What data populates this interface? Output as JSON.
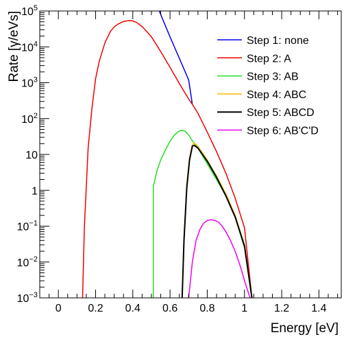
{
  "chart_data": {
    "type": "line",
    "title": "",
    "xlabel": "Energy [eV]",
    "ylabel": "Rate [γ/eVs]",
    "xlim": [
      -0.1,
      1.52
    ],
    "ylim": [
      0.001,
      100000
    ],
    "yscale": "log",
    "grid": false,
    "legend_position": "top-right",
    "x_ticks": [
      {
        "value": 0,
        "label": "0"
      },
      {
        "value": 0.2,
        "label": "0.2"
      },
      {
        "value": 0.4,
        "label": "0.4"
      },
      {
        "value": 0.6,
        "label": "0.6"
      },
      {
        "value": 0.8,
        "label": "0.8"
      },
      {
        "value": 1.0,
        "label": "1"
      },
      {
        "value": 1.2,
        "label": "1.2"
      },
      {
        "value": 1.4,
        "label": "1.4"
      }
    ],
    "y_ticks": [
      {
        "value": 0.001,
        "label": "10",
        "exp": "−3"
      },
      {
        "value": 0.01,
        "label": "10",
        "exp": "−2"
      },
      {
        "value": 0.1,
        "label": "10",
        "exp": "−1"
      },
      {
        "value": 1,
        "label": "1",
        "exp": ""
      },
      {
        "value": 10,
        "label": "10",
        "exp": ""
      },
      {
        "value": 100,
        "label": "10",
        "exp": "2"
      },
      {
        "value": 1000,
        "label": "10",
        "exp": "3"
      },
      {
        "value": 10000,
        "label": "10",
        "exp": "4"
      },
      {
        "value": 100000,
        "label": "10",
        "exp": "5"
      }
    ],
    "series": [
      {
        "name": "Step 1: none",
        "color": "#0000ee",
        "x": [
          0.542,
          0.6,
          0.65,
          0.7,
          0.72
        ],
        "y": [
          100000,
          19000,
          4800,
          1200,
          250
        ]
      },
      {
        "name": "Step 2: A",
        "color": "#ee0000",
        "x": [
          0.13,
          0.14,
          0.16,
          0.18,
          0.2,
          0.22,
          0.25,
          0.28,
          0.3,
          0.32,
          0.35,
          0.38,
          0.4,
          0.42,
          0.45,
          0.48,
          0.5,
          0.55,
          0.6,
          0.65,
          0.7,
          0.72,
          0.75,
          0.8,
          0.85,
          0.9,
          0.95,
          1.0,
          1.04
        ],
        "y": [
          0.001,
          0.1,
          15,
          180,
          1300,
          4000,
          13000,
          27000,
          36000,
          43000,
          51000,
          54000,
          53000,
          48000,
          37000,
          25000,
          19000,
          7400,
          2700,
          950,
          350,
          250,
          140,
          42,
          12,
          3.0,
          0.6,
          0.09,
          0.001
        ]
      },
      {
        "name": "Step 3: AB",
        "color": "#22dd22",
        "x": [
          0.51,
          0.51,
          0.515,
          0.53,
          0.55,
          0.58,
          0.6,
          0.62,
          0.64,
          0.66,
          0.68,
          0.7,
          0.72,
          0.75,
          0.8,
          0.85,
          0.9,
          0.95,
          1.0,
          1.04
        ],
        "y": [
          0.001,
          1.3,
          1.6,
          3.5,
          7,
          15,
          23,
          33,
          42,
          47,
          45,
          35,
          24,
          15,
          5.5,
          2.0,
          0.7,
          0.18,
          0.025,
          0.001
        ]
      },
      {
        "name": "Step 4: ABC",
        "color": "#ffbb00",
        "x": [
          0.665,
          0.675,
          0.69,
          0.705,
          0.72,
          0.73,
          0.75,
          0.8,
          0.85,
          0.9,
          0.95,
          1.0,
          1.04
        ],
        "y": [
          0.001,
          0.05,
          1.5,
          8,
          19,
          21,
          17,
          7,
          2.5,
          0.8,
          0.2,
          0.03,
          0.001
        ]
      },
      {
        "name": "Step 5: ABCD",
        "color": "#000000",
        "x": [
          0.665,
          0.675,
          0.69,
          0.705,
          0.72,
          0.73,
          0.75,
          0.8,
          0.85,
          0.9,
          0.95,
          1.0,
          1.04
        ],
        "y": [
          0.001,
          0.04,
          1.2,
          7,
          17,
          18,
          15,
          6.5,
          2.3,
          0.7,
          0.18,
          0.028,
          0.001
        ]
      },
      {
        "name": "Step 6: AB'C'D",
        "color": "#ee00ee",
        "x": [
          0.7,
          0.72,
          0.74,
          0.76,
          0.78,
          0.8,
          0.82,
          0.84,
          0.86,
          0.88,
          0.9,
          0.92,
          0.95,
          0.98,
          1.0,
          1.03
        ],
        "y": [
          0.001,
          0.01,
          0.04,
          0.08,
          0.12,
          0.145,
          0.15,
          0.145,
          0.13,
          0.1,
          0.07,
          0.045,
          0.02,
          0.007,
          0.003,
          0.001
        ]
      }
    ]
  }
}
